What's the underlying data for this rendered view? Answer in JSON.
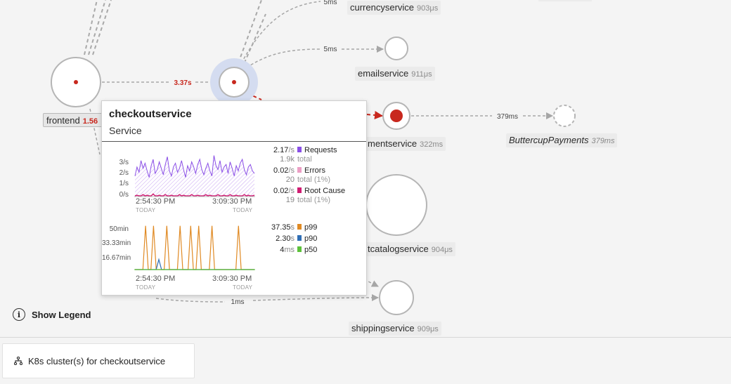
{
  "map": {
    "nodes": {
      "frontend": {
        "label": "frontend",
        "latency": "1.56"
      },
      "currencyservice": {
        "label": "currencyservice",
        "latency": "903μs"
      },
      "emailservice": {
        "label": "emailservice",
        "latency": "911μs"
      },
      "paymentservice": {
        "label": "mentservice",
        "latency": "322ms"
      },
      "buttercup": {
        "label": "ButtercupPayments",
        "latency": "379ms"
      },
      "productcatalog": {
        "label": "tcatalogservice",
        "latency": "904μs"
      },
      "shippingservice": {
        "label": "shippingservice",
        "latency": "909μs"
      }
    },
    "edges": {
      "frontend_checkout": "3.37s",
      "checkout_currency": "5ms",
      "checkout_email": "5ms",
      "payment_buttercup": "379ms",
      "checkout_shipping": "1ms"
    },
    "colors": {
      "error": "#c8281e",
      "edge": "#a6a6a6",
      "selected_halo": "#d4dcf0"
    }
  },
  "tooltip": {
    "title": "checkoutservice",
    "subtitle": "Service",
    "requests_chart": {
      "y_ticks": [
        "3/s",
        "2/s",
        "1/s",
        "0/s"
      ],
      "x_ticks": [
        {
          "time": "2:54:30 PM",
          "day": "TODAY"
        },
        {
          "time": "3:09:30 PM",
          "day": "TODAY"
        }
      ]
    },
    "latency_chart": {
      "y_ticks": [
        "50min",
        "33.33min",
        "16.67min"
      ],
      "x_ticks": [
        {
          "time": "2:54:30 PM",
          "day": "TODAY"
        },
        {
          "time": "3:09:30 PM",
          "day": "TODAY"
        }
      ]
    },
    "stats": {
      "requests": {
        "value": "2.17",
        "unit": "/s",
        "name": "Requests",
        "total_value": "1.9k",
        "total_label": "total",
        "color": "#8a4fe6"
      },
      "errors": {
        "value": "0.02",
        "unit": "/s",
        "name": "Errors",
        "total_value": "20",
        "total_label": "total (1%)",
        "color": "#ec9ec4"
      },
      "root_cause": {
        "value": "0.02",
        "unit": "/s",
        "name": "Root Cause",
        "total_value": "19",
        "total_label": "total (1%)",
        "color": "#d01c72"
      }
    },
    "percentiles": {
      "p99": {
        "value": "37.35",
        "unit": "s",
        "name": "p99",
        "color": "#e08a24"
      },
      "p90": {
        "value": "2.30",
        "unit": "s",
        "name": "p90",
        "color": "#2f6eb5"
      },
      "p50": {
        "value": "4",
        "unit": "ms",
        "name": "p50",
        "color": "#5cc13a"
      }
    }
  },
  "legend_button": {
    "icon": "info-icon",
    "glyph": "i",
    "label": "Show Legend"
  },
  "k8s_button": {
    "icon": "hierarchy-icon",
    "label": "K8s cluster(s) for checkoutservice"
  },
  "chart_data": [
    {
      "type": "area",
      "title": "",
      "xlabel": "",
      "ylabel": "",
      "x_tick_labels": [
        "2:54:30 PM",
        "3:09:30 PM"
      ],
      "y_tick_labels": [
        "3/s",
        "2/s",
        "1/s",
        "0/s"
      ],
      "ylim": [
        0,
        3.5
      ],
      "series": [
        {
          "name": "Requests",
          "color": "#8a4fe6",
          "values": [
            1.6,
            2.3,
            1.9,
            2.8,
            2.2,
            2.6,
            2.0,
            1.5,
            2.4,
            2.9,
            1.8,
            2.1,
            2.7,
            2.2,
            1.7,
            2.5,
            3.1,
            2.0,
            1.6,
            2.3,
            2.6,
            1.9,
            2.2,
            2.8,
            2.1,
            1.5,
            2.4,
            2.0,
            2.7,
            2.3,
            1.8,
            2.5,
            2.9,
            2.1,
            1.7,
            2.2,
            2.6,
            2.0,
            1.6,
            3.2,
            2.4,
            2.1,
            2.8,
            1.9,
            2.3,
            2.5,
            1.8,
            2.7,
            2.2,
            1.6,
            2.4,
            2.0,
            2.6,
            2.9,
            2.1,
            1.7,
            2.3,
            2.5,
            2.0,
            1.8
          ]
        },
        {
          "name": "Root Cause",
          "color": "#d01c72",
          "values": [
            0.0,
            0.05,
            0.0,
            0.0,
            0.1,
            0.0,
            0.05,
            0.0,
            0.0,
            0.15,
            0.0,
            0.0,
            0.05,
            0.0,
            0.0,
            0.1,
            0.0,
            0.0,
            0.05,
            0.0,
            0.0,
            0.0,
            0.1,
            0.0,
            0.05,
            0.0,
            0.0,
            0.0,
            0.1,
            0.0,
            0.0,
            0.05,
            0.0,
            0.0,
            0.0,
            0.1,
            0.0,
            0.05,
            0.0,
            0.0,
            0.0,
            0.1,
            0.0,
            0.0,
            0.05,
            0.0,
            0.0,
            0.1,
            0.0,
            0.0,
            0.05,
            0.0,
            0.0,
            0.0,
            0.1,
            0.0,
            0.05,
            0.0,
            0.0,
            0.05
          ]
        }
      ]
    },
    {
      "type": "line",
      "title": "",
      "xlabel": "",
      "ylabel": "",
      "x_tick_labels": [
        "2:54:30 PM",
        "3:09:30 PM"
      ],
      "y_tick_labels": [
        "50min",
        "33.33min",
        "16.67min"
      ],
      "ylim": [
        0,
        50
      ],
      "series": [
        {
          "name": "p99",
          "color": "#e08a24",
          "values": [
            0,
            0,
            0,
            0,
            52,
            0,
            0,
            52,
            0,
            0,
            0,
            0,
            52,
            0,
            0,
            0,
            0,
            52,
            0,
            0,
            0,
            52,
            0,
            0,
            52,
            0,
            0,
            0,
            0,
            52,
            0,
            0,
            0,
            0,
            0,
            0,
            0,
            0,
            0,
            52,
            0,
            0,
            0,
            0,
            0,
            0
          ]
        },
        {
          "name": "p90",
          "color": "#2f6eb5",
          "values": [
            0,
            0,
            0,
            0,
            0,
            0,
            0,
            0,
            0,
            12,
            0,
            0,
            0,
            0,
            0,
            0,
            0,
            0,
            0,
            0,
            0,
            0,
            0,
            0,
            0,
            0,
            0,
            0,
            0,
            0,
            0,
            0,
            0,
            0,
            0,
            0,
            0,
            0,
            0,
            0,
            0,
            0,
            0,
            0,
            0,
            0
          ]
        },
        {
          "name": "p50",
          "color": "#5cc13a",
          "values": [
            0,
            0,
            0,
            0,
            0,
            0,
            0,
            0,
            0,
            0,
            0,
            0,
            0,
            0,
            0,
            0,
            0,
            0,
            0,
            0,
            0,
            0,
            0,
            0,
            0,
            0,
            0,
            0,
            0,
            0,
            0,
            0,
            0,
            0,
            0,
            0,
            0,
            0,
            0,
            0,
            0,
            0,
            0,
            0,
            0,
            0
          ]
        }
      ]
    }
  ]
}
